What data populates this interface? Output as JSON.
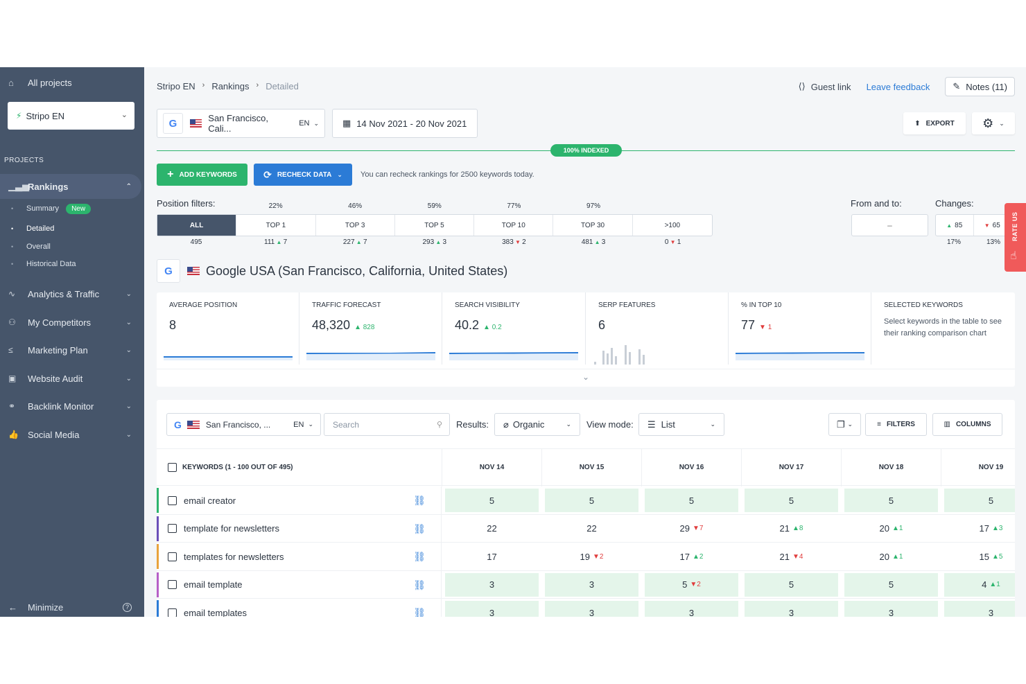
{
  "sidebar": {
    "all_projects": "All projects",
    "project_select": "Stripo EN",
    "projects_label": "PROJECTS",
    "rankings": "Rankings",
    "sub": [
      {
        "label": "Summary",
        "badge": "New"
      },
      {
        "label": "Detailed"
      },
      {
        "label": "Overall"
      },
      {
        "label": "Historical Data"
      }
    ],
    "items": [
      {
        "label": "Analytics & Traffic",
        "icon": "analytics-icon"
      },
      {
        "label": "My Competitors",
        "icon": "competitors-icon"
      },
      {
        "label": "Marketing Plan",
        "icon": "plan-icon"
      },
      {
        "label": "Website Audit",
        "icon": "audit-icon"
      },
      {
        "label": "Backlink Monitor",
        "icon": "link-icon"
      },
      {
        "label": "Social Media",
        "icon": "thumbs-up-icon"
      }
    ],
    "minimize": "Minimize"
  },
  "breadcrumb": [
    "Stripo EN",
    "Rankings",
    "Detailed"
  ],
  "header": {
    "guest_link": "Guest link",
    "leave_feedback": "Leave feedback",
    "notes": "Notes (11)"
  },
  "controls": {
    "location": "San Francisco, Cali...",
    "lang": "EN",
    "date_range": "14 Nov 2021 - 20 Nov 2021",
    "export": "EXPORT",
    "indexed": "100% INDEXED",
    "add_keywords": "ADD KEYWORDS",
    "recheck": "RECHECK DATA",
    "recheck_note": "You can recheck rankings for 2500 keywords today."
  },
  "position_filters": {
    "label": "Position filters:",
    "tabs": [
      {
        "label": "ALL",
        "pct": "",
        "count": "495",
        "delta": "",
        "dir": ""
      },
      {
        "label": "TOP 1",
        "pct": "22%",
        "count": "111",
        "delta": "7",
        "dir": "up"
      },
      {
        "label": "TOP 3",
        "pct": "46%",
        "count": "227",
        "delta": "7",
        "dir": "up"
      },
      {
        "label": "TOP 5",
        "pct": "59%",
        "count": "293",
        "delta": "3",
        "dir": "up"
      },
      {
        "label": "TOP 10",
        "pct": "77%",
        "count": "383",
        "delta": "2",
        "dir": "down"
      },
      {
        "label": "TOP 30",
        "pct": "97%",
        "count": "481",
        "delta": "3",
        "dir": "up"
      },
      {
        "label": ">100",
        "pct": "",
        "count": "0",
        "delta": "1",
        "dir": "down"
      }
    ],
    "from_to_label": "From and to:",
    "from_to_sep": "–",
    "changes_label": "Changes:",
    "changes_up": "85",
    "changes_down": "65",
    "changes_up_pct": "17%",
    "changes_down_pct": "13%"
  },
  "rate_us": "RATE US",
  "engine_title": "Google USA (San Francisco, California, United States)",
  "metrics": [
    {
      "label": "AVERAGE POSITION",
      "value": "8",
      "delta": "",
      "dir": ""
    },
    {
      "label": "TRAFFIC FORECAST",
      "value": "48,320",
      "delta": "828",
      "dir": "up"
    },
    {
      "label": "SEARCH VISIBILITY",
      "value": "40.2",
      "delta": "0.2",
      "dir": "up"
    },
    {
      "label": "SERP FEATURES",
      "value": "6",
      "delta": "",
      "dir": ""
    },
    {
      "label": "% IN TOP 10",
      "value": "77",
      "delta": "1",
      "dir": "down"
    },
    {
      "label": "SELECTED KEYWORDS",
      "desc": "Select keywords in the table to see their ranking comparison chart"
    }
  ],
  "table": {
    "location": "San Francisco, ...",
    "lang": "EN",
    "search_placeholder": "Search",
    "results_label": "Results:",
    "results_value": "Organic",
    "view_label": "View mode:",
    "view_value": "List",
    "filters": "FILTERS",
    "columns": "COLUMNS",
    "keywords_header": "KEYWORDS (1 - 100 OUT OF 495)",
    "dates": [
      "NOV 14",
      "NOV 15",
      "NOV 16",
      "NOV 17",
      "NOV 18",
      "NOV 19"
    ],
    "rows": [
      {
        "keyword": "email creator",
        "bar": "#2cb46d",
        "cells": [
          {
            "v": "5",
            "g": true
          },
          {
            "v": "5",
            "g": true
          },
          {
            "v": "5",
            "g": true
          },
          {
            "v": "5",
            "g": true
          },
          {
            "v": "5",
            "g": true
          },
          {
            "v": "5",
            "g": true
          }
        ]
      },
      {
        "keyword": "template for newsletters",
        "bar": "#6a4fb8",
        "cells": [
          {
            "v": "22"
          },
          {
            "v": "22"
          },
          {
            "v": "29",
            "d": "7",
            "dir": "down"
          },
          {
            "v": "21",
            "d": "8",
            "dir": "up"
          },
          {
            "v": "20",
            "d": "1",
            "dir": "up"
          },
          {
            "v": "17",
            "d": "3",
            "dir": "up"
          }
        ]
      },
      {
        "keyword": "templates for newsletters",
        "bar": "#e8a33c",
        "cells": [
          {
            "v": "17"
          },
          {
            "v": "19",
            "d": "2",
            "dir": "down"
          },
          {
            "v": "17",
            "d": "2",
            "dir": "up"
          },
          {
            "v": "21",
            "d": "4",
            "dir": "down"
          },
          {
            "v": "20",
            "d": "1",
            "dir": "up"
          },
          {
            "v": "15",
            "d": "5",
            "dir": "up"
          }
        ]
      },
      {
        "keyword": "email template",
        "bar": "#b65fc7",
        "cells": [
          {
            "v": "3",
            "g": true
          },
          {
            "v": "3",
            "g": true
          },
          {
            "v": "5",
            "d": "2",
            "dir": "down",
            "g": true
          },
          {
            "v": "5",
            "g": true
          },
          {
            "v": "5",
            "g": true
          },
          {
            "v": "4",
            "d": "1",
            "dir": "up",
            "g": true
          }
        ]
      },
      {
        "keyword": "email templates",
        "bar": "#2b7bd6",
        "cells": [
          {
            "v": "3",
            "g": true
          },
          {
            "v": "3",
            "g": true
          },
          {
            "v": "3",
            "g": true
          },
          {
            "v": "3",
            "g": true
          },
          {
            "v": "3",
            "g": true
          },
          {
            "v": "3",
            "g": true
          }
        ]
      }
    ]
  }
}
